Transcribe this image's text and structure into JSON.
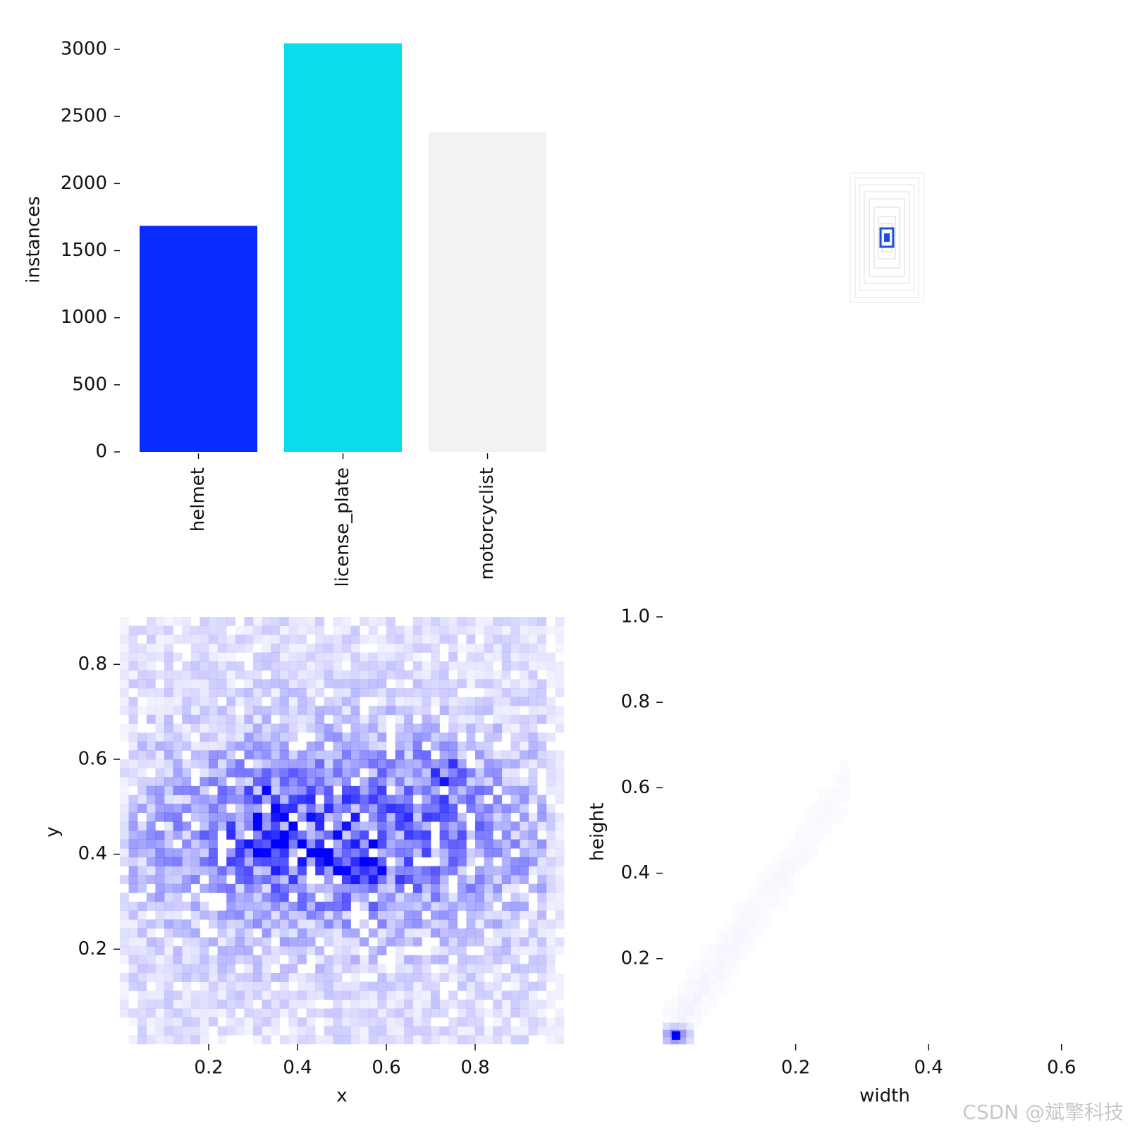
{
  "chart_data": [
    {
      "type": "bar",
      "ylabel": "instances",
      "categories": [
        "helmet",
        "license_plate",
        "motorcyclist"
      ],
      "values": [
        1685,
        3045,
        2385
      ],
      "colors": [
        "#0a2bff",
        "#0bdcea",
        "#f2f2f2"
      ],
      "ylim": [
        0,
        3050
      ],
      "yticks": [
        "0",
        "500",
        "1000",
        "1500",
        "2000",
        "2500",
        "3000"
      ]
    },
    {
      "type": "box-overlay",
      "description_colors": {
        "outline": "#dcdcdc",
        "center": "#1a4fd6"
      }
    },
    {
      "type": "heatmap",
      "xlabel": "x",
      "ylabel": "y",
      "xlim": [
        0.0,
        1.0
      ],
      "ylim": [
        0.0,
        0.9
      ],
      "xticks": [
        "0.2",
        "0.4",
        "0.6",
        "0.8"
      ],
      "yticks": [
        "0.2",
        "0.4",
        "0.6",
        "0.8"
      ],
      "color": "#0000ff",
      "hotspots": [
        [
          0.33,
          0.5
        ],
        [
          0.73,
          0.56
        ],
        [
          0.32,
          0.42
        ],
        [
          0.42,
          0.42
        ],
        [
          0.55,
          0.38
        ]
      ]
    },
    {
      "type": "heatmap",
      "xlabel": "width",
      "ylabel": "height",
      "xlim": [
        0.0,
        0.7
      ],
      "ylim": [
        0.0,
        1.0
      ],
      "xticks": [
        "0.2",
        "0.4",
        "0.6"
      ],
      "yticks": [
        "0.2",
        "0.4",
        "0.6",
        "0.8",
        "1.0"
      ],
      "color": "#0000ff",
      "peak": [
        0.02,
        0.02
      ]
    }
  ],
  "watermark": "CSDN @斌擎科技"
}
